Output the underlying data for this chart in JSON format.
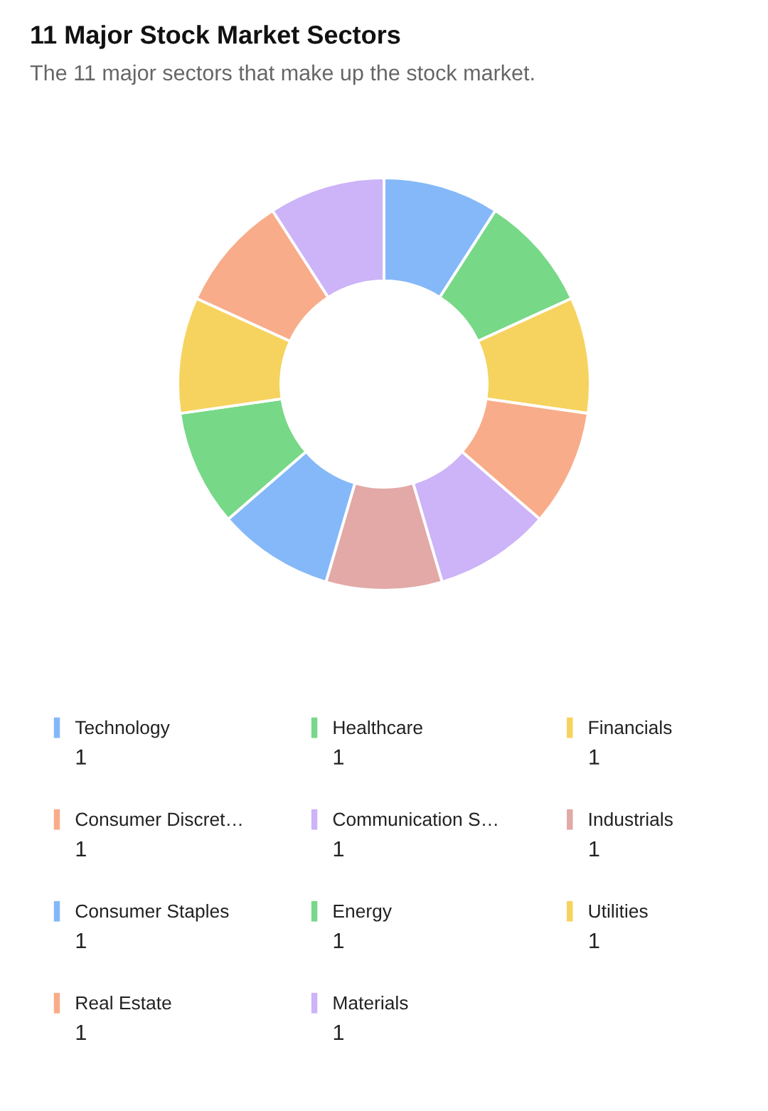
{
  "chart_data": {
    "type": "donut",
    "title": "11 Major Stock Market Sectors",
    "subtitle": "The 11 major sectors that make up the stock market.",
    "categories": [
      "Technology",
      "Healthcare",
      "Financials",
      "Consumer Discret…",
      "Communication S…",
      "Industrials",
      "Consumer Staples",
      "Energy",
      "Utilities",
      "Real Estate",
      "Materials"
    ],
    "values": [
      1,
      1,
      1,
      1,
      1,
      1,
      1,
      1,
      1,
      1,
      1
    ],
    "colors": [
      "#85b8f8",
      "#77d887",
      "#f6d35e",
      "#f8ac8a",
      "#cdb3f8",
      "#e2a9a7",
      "#85b8f8",
      "#77d887",
      "#f6d35e",
      "#f8ac8a",
      "#cdb3f8"
    ],
    "data_labels": true,
    "legend": "bottom"
  }
}
